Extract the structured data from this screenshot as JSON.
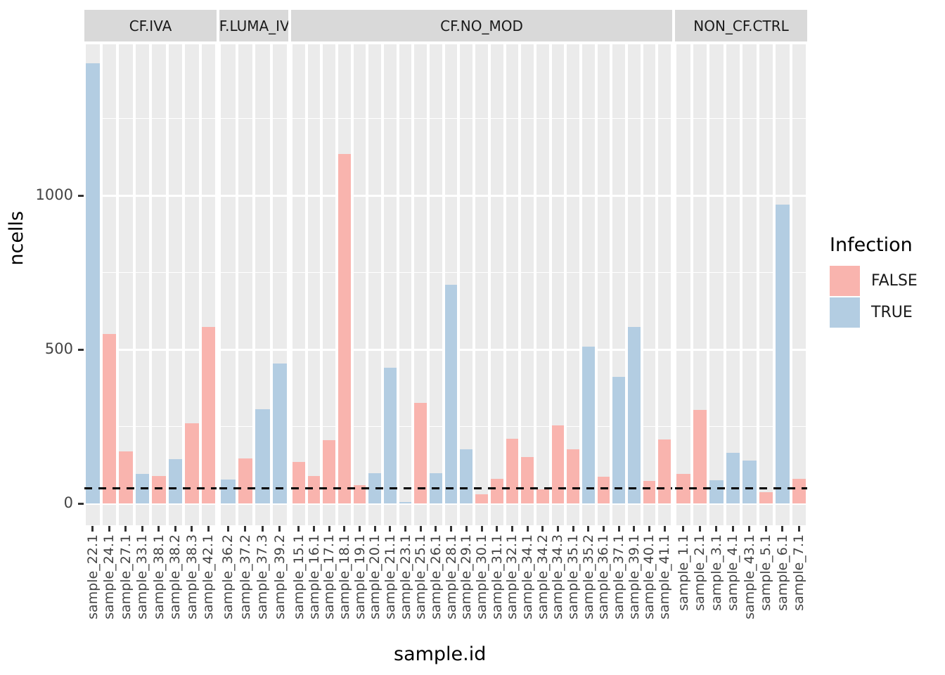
{
  "chart_data": {
    "type": "bar",
    "title": "",
    "xlabel": "sample.id",
    "ylabel": "ncells",
    "ylim": [
      0,
      1490
    ],
    "yticks": [
      0,
      500,
      1000
    ],
    "minor_gridlines": [
      250,
      750,
      1250
    ],
    "grid": "on",
    "hline": {
      "value": 50,
      "style": "dashed",
      "color": "#000000"
    },
    "legend": {
      "title": "Infection",
      "position": "right",
      "entries": [
        {
          "label": "FALSE",
          "color": "#F9B4AE"
        },
        {
          "label": "TRUE",
          "color": "#B3CDE2"
        }
      ]
    },
    "colors": {
      "false_fill": "#F9B4AE",
      "true_fill": "#B3CDE2",
      "panel_bg": "#EBEBEB",
      "strip_bg": "#D9D9D9",
      "gridline": "#FFFFFF",
      "axis_text": "#444444",
      "tick_mark": "#333333"
    },
    "facets": [
      {
        "label": "CF.IVA",
        "bars": [
          {
            "sample": "sample_22.1",
            "infection": "TRUE",
            "ncells": 1430
          },
          {
            "sample": "sample_24.1",
            "infection": "FALSE",
            "ncells": 550
          },
          {
            "sample": "sample_27.1",
            "infection": "FALSE",
            "ncells": 170
          },
          {
            "sample": "sample_33.1",
            "infection": "TRUE",
            "ncells": 95
          },
          {
            "sample": "sample_38.1",
            "infection": "FALSE",
            "ncells": 88
          },
          {
            "sample": "sample_38.2",
            "infection": "TRUE",
            "ncells": 145
          },
          {
            "sample": "sample_38.3",
            "infection": "FALSE",
            "ncells": 260
          },
          {
            "sample": "sample_42.1",
            "infection": "FALSE",
            "ncells": 573
          }
        ]
      },
      {
        "label": "CF.LUMA_IVA",
        "bars": [
          {
            "sample": "sample_36.2",
            "infection": "TRUE",
            "ncells": 78
          },
          {
            "sample": "sample_37.2",
            "infection": "FALSE",
            "ncells": 146
          },
          {
            "sample": "sample_37.3",
            "infection": "TRUE",
            "ncells": 306
          },
          {
            "sample": "sample_39.2",
            "infection": "TRUE",
            "ncells": 454
          }
        ]
      },
      {
        "label": "CF.NO_MOD",
        "bars": [
          {
            "sample": "sample_15.1",
            "infection": "FALSE",
            "ncells": 135
          },
          {
            "sample": "sample_16.1",
            "infection": "FALSE",
            "ncells": 89
          },
          {
            "sample": "sample_17.1",
            "infection": "FALSE",
            "ncells": 206
          },
          {
            "sample": "sample_18.1",
            "infection": "FALSE",
            "ncells": 1135
          },
          {
            "sample": "sample_19.1",
            "infection": "FALSE",
            "ncells": 60
          },
          {
            "sample": "sample_20.1",
            "infection": "TRUE",
            "ncells": 98
          },
          {
            "sample": "sample_21.1",
            "infection": "TRUE",
            "ncells": 441
          },
          {
            "sample": "sample_23.1",
            "infection": "TRUE",
            "ncells": 5
          },
          {
            "sample": "sample_25.1",
            "infection": "FALSE",
            "ncells": 327
          },
          {
            "sample": "sample_26.1",
            "infection": "TRUE",
            "ncells": 98
          },
          {
            "sample": "sample_28.1",
            "infection": "TRUE",
            "ncells": 710
          },
          {
            "sample": "sample_29.1",
            "infection": "TRUE",
            "ncells": 176
          },
          {
            "sample": "sample_30.1",
            "infection": "FALSE",
            "ncells": 30
          },
          {
            "sample": "sample_31.1",
            "infection": "FALSE",
            "ncells": 80
          },
          {
            "sample": "sample_32.1",
            "infection": "FALSE",
            "ncells": 210
          },
          {
            "sample": "sample_34.1",
            "infection": "FALSE",
            "ncells": 151
          },
          {
            "sample": "sample_34.2",
            "infection": "FALSE",
            "ncells": 45
          },
          {
            "sample": "sample_34.3",
            "infection": "FALSE",
            "ncells": 254
          },
          {
            "sample": "sample_35.1",
            "infection": "FALSE",
            "ncells": 176
          },
          {
            "sample": "sample_35.2",
            "infection": "TRUE",
            "ncells": 510
          },
          {
            "sample": "sample_36.1",
            "infection": "FALSE",
            "ncells": 87
          },
          {
            "sample": "sample_37.1",
            "infection": "TRUE",
            "ncells": 411
          },
          {
            "sample": "sample_39.1",
            "infection": "TRUE",
            "ncells": 573
          },
          {
            "sample": "sample_40.1",
            "infection": "FALSE",
            "ncells": 73
          },
          {
            "sample": "sample_41.1",
            "infection": "FALSE",
            "ncells": 208
          }
        ]
      },
      {
        "label": "NON_CF.CTRL",
        "bars": [
          {
            "sample": "sample_1.1",
            "infection": "FALSE",
            "ncells": 95
          },
          {
            "sample": "sample_2.1",
            "infection": "FALSE",
            "ncells": 304
          },
          {
            "sample": "sample_3.1",
            "infection": "TRUE",
            "ncells": 75
          },
          {
            "sample": "sample_4.1",
            "infection": "TRUE",
            "ncells": 164
          },
          {
            "sample": "sample_43.1",
            "infection": "TRUE",
            "ncells": 139
          },
          {
            "sample": "sample_5.1",
            "infection": "FALSE",
            "ncells": 36
          },
          {
            "sample": "sample_6.1",
            "infection": "TRUE",
            "ncells": 971
          },
          {
            "sample": "sample_7.1",
            "infection": "FALSE",
            "ncells": 80
          }
        ]
      }
    ]
  }
}
